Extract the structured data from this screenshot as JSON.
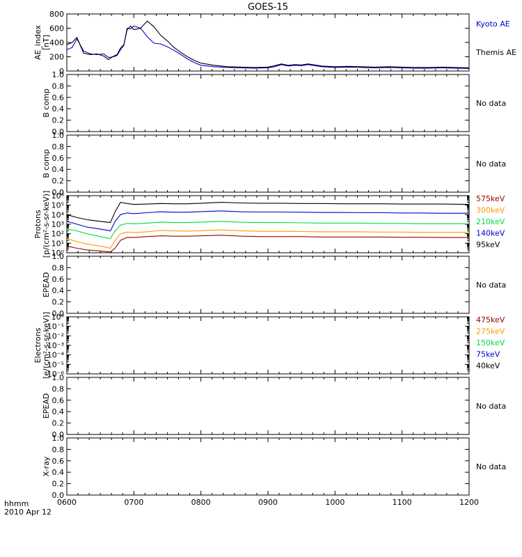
{
  "title": "GOES-15",
  "time_axis": {
    "label_line1": "hhmm",
    "label_line2": "2010 Apr 12",
    "ticks": [
      "0600",
      "0700",
      "0800",
      "0900",
      "1000",
      "1100",
      "1200"
    ]
  },
  "chart_data": [
    {
      "type": "line",
      "id": "ae",
      "ylabel": [
        "AE_index",
        "[nT]"
      ],
      "ylim": [
        0,
        800
      ],
      "yticks": [
        "0",
        "200",
        "400",
        "600",
        "800"
      ],
      "x_hours": [
        6.0,
        6.08,
        6.15,
        6.25,
        6.35,
        6.45,
        6.55,
        6.62,
        6.7,
        6.75,
        6.8,
        6.85,
        6.9,
        6.95,
        7.0,
        7.1,
        7.2,
        7.3,
        7.4,
        7.5,
        7.6,
        7.7,
        7.8,
        7.9,
        8.0,
        8.2,
        8.4,
        8.6,
        8.8,
        9.0,
        9.1,
        9.2,
        9.3,
        9.4,
        9.5,
        9.6,
        9.8,
        10.0,
        10.2,
        10.4,
        10.6,
        10.8,
        11.0,
        11.2,
        11.4,
        11.6,
        11.8,
        12.0
      ],
      "series": [
        {
          "name": "Kyoto AE",
          "color": "#0000cc",
          "values": [
            300,
            330,
            450,
            280,
            240,
            230,
            240,
            190,
            200,
            220,
            300,
            360,
            600,
            590,
            630,
            600,
            480,
            390,
            380,
            340,
            290,
            230,
            170,
            120,
            80,
            60,
            50,
            45,
            40,
            45,
            60,
            90,
            70,
            80,
            75,
            90,
            60,
            50,
            55,
            50,
            45,
            50,
            45,
            40,
            40,
            45,
            40,
            35
          ]
        },
        {
          "name": "Themis AE",
          "color": "#000000",
          "values": [
            370,
            400,
            470,
            250,
            230,
            240,
            210,
            160,
            210,
            230,
            320,
            370,
            580,
            630,
            580,
            600,
            700,
            620,
            500,
            420,
            330,
            260,
            200,
            150,
            110,
            80,
            60,
            55,
            50,
            55,
            75,
            100,
            80,
            90,
            85,
            100,
            70,
            60,
            65,
            60,
            55,
            60,
            55,
            50,
            50,
            55,
            50,
            45
          ]
        }
      ]
    },
    {
      "type": "line",
      "id": "b1",
      "ylabel": [
        "B comp"
      ],
      "ylim": [
        0,
        1
      ],
      "yticks": [
        "0.0",
        "0.2",
        "0.4",
        "0.6",
        "0.8",
        "1.0"
      ],
      "note": "No data",
      "series": []
    },
    {
      "type": "line",
      "id": "b2",
      "ylabel": [
        "B comp"
      ],
      "ylim": [
        0,
        1
      ],
      "yticks": [
        "0.0",
        "0.2",
        "0.4",
        "0.6",
        "0.8",
        "1.0"
      ],
      "note": "No data",
      "series": []
    },
    {
      "type": "line",
      "id": "protons",
      "scale": "log",
      "ylabel": [
        "Protons",
        "[p/(cm²-s-sr-keV)]"
      ],
      "ylim": [
        1,
        1000000
      ],
      "yticks": [
        "10⁰",
        "10¹",
        "10²",
        "10³",
        "10⁴",
        "10⁵",
        "10⁶"
      ],
      "x_hours": [
        6.0,
        6.15,
        6.3,
        6.5,
        6.65,
        6.72,
        6.8,
        6.9,
        7.0,
        7.2,
        7.4,
        7.6,
        7.8,
        8.0,
        8.3,
        8.6,
        8.9,
        9.2,
        9.5,
        9.8,
        10.1,
        10.4,
        10.7,
        11.0,
        11.3,
        11.6,
        12.0
      ],
      "series": [
        {
          "name": "575keV",
          "color": "#990000",
          "values": [
            5,
            3,
            2,
            1.5,
            1.2,
            3,
            20,
            40,
            40,
            50,
            60,
            55,
            55,
            60,
            70,
            55,
            50,
            50,
            50,
            45,
            45,
            45,
            45,
            42,
            42,
            40,
            40
          ]
        },
        {
          "name": "300keV",
          "color": "#ff9900",
          "values": [
            30,
            15,
            8,
            5,
            3,
            20,
            100,
            150,
            130,
            160,
            220,
            200,
            190,
            210,
            250,
            200,
            180,
            180,
            170,
            160,
            160,
            160,
            150,
            150,
            140,
            140,
            140
          ]
        },
        {
          "name": "210keV",
          "color": "#00dd44",
          "values": [
            300,
            200,
            100,
            50,
            30,
            200,
            800,
            1200,
            1100,
            1300,
            1700,
            1500,
            1500,
            1700,
            2000,
            1600,
            1500,
            1500,
            1400,
            1300,
            1300,
            1300,
            1200,
            1200,
            1100,
            1100,
            1100
          ]
        },
        {
          "name": "140keV",
          "color": "#0000cc",
          "values": [
            2000,
            1000,
            500,
            300,
            200,
            2000,
            10000,
            15000,
            13000,
            16000,
            20000,
            18000,
            18000,
            21000,
            25000,
            20000,
            19000,
            19000,
            18000,
            17000,
            17000,
            16000,
            16000,
            15000,
            15000,
            14000,
            14000
          ]
        },
        {
          "name": "95keV",
          "color": "#000000",
          "values": [
            10000,
            5000,
            3000,
            2000,
            1500,
            20000,
            200000,
            150000,
            120000,
            130000,
            150000,
            140000,
            140000,
            160000,
            200000,
            170000,
            160000,
            160000,
            150000,
            150000,
            140000,
            140000,
            140000,
            130000,
            130000,
            130000,
            120000
          ]
        }
      ]
    },
    {
      "type": "line",
      "id": "epead1",
      "ylabel": [
        "EPEAD"
      ],
      "ylim": [
        0,
        1
      ],
      "yticks": [
        "0.0",
        "0.2",
        "0.4",
        "0.6",
        "0.8",
        "1.0"
      ],
      "note": "No data",
      "series": []
    },
    {
      "type": "line",
      "id": "electrons",
      "scale": "log",
      "ylabel": [
        "Electrons",
        "[e/(cm²-s-sr-keV)]"
      ],
      "ylim": [
        1e-06,
        1
      ],
      "yticks": [
        "10⁻⁶",
        "10⁻⁵",
        "10⁻⁴",
        "10⁻³",
        "10⁻²",
        "10⁻¹",
        "10⁰"
      ],
      "legend": [
        {
          "name": "475keV",
          "color": "#990000"
        },
        {
          "name": "275keV",
          "color": "#ff9900"
        },
        {
          "name": "150keV",
          "color": "#00dd44"
        },
        {
          "name": "75keV",
          "color": "#0000cc"
        },
        {
          "name": "40keV",
          "color": "#000000"
        }
      ],
      "series": []
    },
    {
      "type": "line",
      "id": "epead2",
      "ylabel": [
        "EPEAD"
      ],
      "ylim": [
        0,
        1
      ],
      "yticks": [
        "0.0",
        "0.2",
        "0.4",
        "0.6",
        "0.8",
        "1.0"
      ],
      "note": "No data",
      "series": []
    },
    {
      "type": "line",
      "id": "xray",
      "ylabel": [
        "X-ray"
      ],
      "ylim": [
        0,
        1
      ],
      "yticks": [
        "0.0",
        "0.2",
        "0.4",
        "0.6",
        "0.8",
        "1.0"
      ],
      "note": "No data",
      "series": []
    }
  ]
}
